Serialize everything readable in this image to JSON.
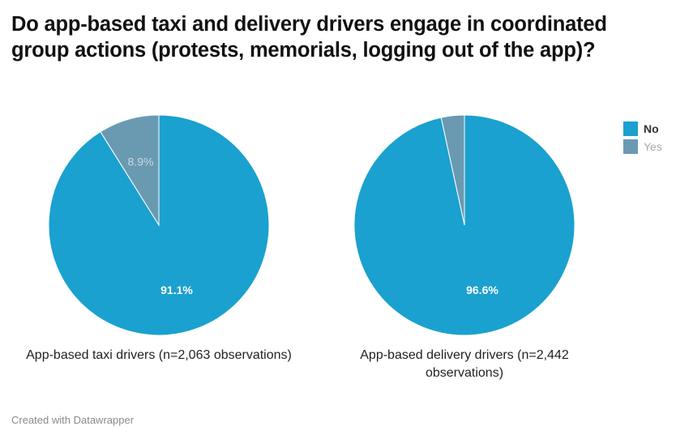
{
  "title": "Do app-based taxi and delivery drivers engage in coordinated group actions (protests, memorials, logging out of the app)?",
  "footer": "Created with Datawrapper",
  "colors": {
    "no": "#1aa1cf",
    "yes": "#6a9ab2"
  },
  "legend": [
    {
      "label": "No",
      "color_key": "no"
    },
    {
      "label": "Yes",
      "color_key": "yes"
    }
  ],
  "chart_data": [
    {
      "type": "pie",
      "caption": "App-based taxi drivers (n=2,063 observations)",
      "slices": [
        {
          "label": "No",
          "value": 91.1,
          "value_label": "91.1%"
        },
        {
          "label": "Yes",
          "value": 8.9,
          "value_label": "8.9%"
        }
      ]
    },
    {
      "type": "pie",
      "caption": "App-based delivery drivers (n=2,442 observations)",
      "slices": [
        {
          "label": "No",
          "value": 96.6,
          "value_label": "96.6%"
        },
        {
          "label": "Yes",
          "value": 3.4,
          "value_label": ""
        }
      ]
    }
  ]
}
